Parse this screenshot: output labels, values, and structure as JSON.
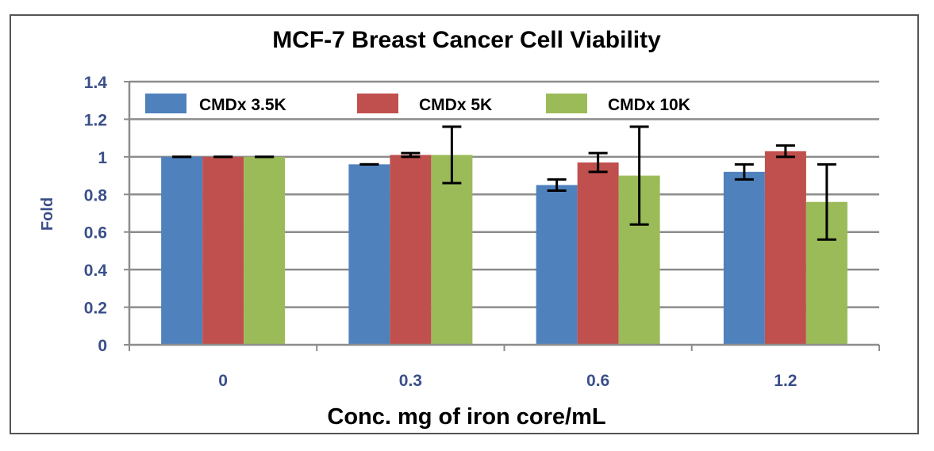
{
  "chart_data": {
    "type": "bar",
    "title": "MCF-7 Breast Cancer Cell Viability",
    "xlabel": "Conc. mg of iron core/mL",
    "ylabel": "Fold",
    "categories": [
      "0",
      "0.3",
      "0.6",
      "1.2"
    ],
    "series": [
      {
        "name": "CMDx 3.5K",
        "values": [
          1.0,
          0.96,
          0.85,
          0.92
        ],
        "errors": [
          0.0,
          0.0,
          0.03,
          0.04
        ],
        "color": "#4f81bd"
      },
      {
        "name": "CMDx 5K",
        "values": [
          1.0,
          1.01,
          0.97,
          1.03
        ],
        "errors": [
          0.0,
          0.01,
          0.05,
          0.03
        ],
        "color": "#c0504d"
      },
      {
        "name": "CMDx 10K",
        "values": [
          1.0,
          1.01,
          0.9,
          0.76
        ],
        "errors": [
          0.0,
          0.15,
          0.26,
          0.2
        ],
        "color": "#9bbb59"
      }
    ],
    "ylim": [
      0,
      1.4
    ],
    "yticks": [
      "0",
      "0.2",
      "0.4",
      "0.6",
      "0.8",
      "1",
      "1.2",
      "1.4"
    ],
    "grid": true,
    "legend_position": "top"
  }
}
